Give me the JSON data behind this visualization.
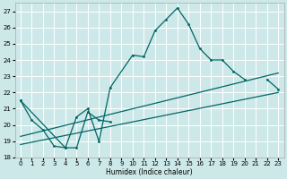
{
  "title": "",
  "xlabel": "Humidex (Indice chaleur)",
  "ylabel": "",
  "background_color": "#cde8e8",
  "grid_color": "#ffffff",
  "line_color": "#006666",
  "ylim": [
    18,
    27.5
  ],
  "xlim": [
    -0.5,
    23.5
  ],
  "yticks": [
    18,
    19,
    20,
    21,
    22,
    23,
    24,
    25,
    26,
    27
  ],
  "xticks": [
    0,
    1,
    2,
    3,
    4,
    5,
    6,
    7,
    8,
    9,
    10,
    11,
    12,
    13,
    14,
    15,
    16,
    17,
    18,
    19,
    20,
    21,
    22,
    23
  ],
  "series1": {
    "x": [
      0,
      1,
      2,
      3,
      4,
      5,
      6,
      7,
      8,
      10,
      11,
      12,
      13,
      14,
      15,
      16,
      17,
      18,
      19,
      20
    ],
    "y": [
      21.5,
      20.3,
      19.7,
      18.7,
      18.6,
      20.5,
      21.0,
      19.0,
      22.3,
      24.3,
      24.2,
      25.8,
      26.5,
      27.2,
      26.2,
      24.7,
      24.0,
      24.0,
      23.3,
      22.8
    ]
  },
  "series2": {
    "segments": [
      {
        "x": [
          0,
          4,
          5,
          6,
          7,
          8
        ],
        "y": [
          21.5,
          18.6,
          18.6,
          20.8,
          20.3,
          20.2
        ]
      },
      {
        "x": [
          22,
          23
        ],
        "y": [
          22.8,
          22.2
        ]
      }
    ]
  },
  "line1": {
    "x": [
      0,
      23
    ],
    "y": [
      19.3,
      23.2
    ]
  },
  "line2": {
    "x": [
      0,
      23
    ],
    "y": [
      18.8,
      22.0
    ]
  }
}
